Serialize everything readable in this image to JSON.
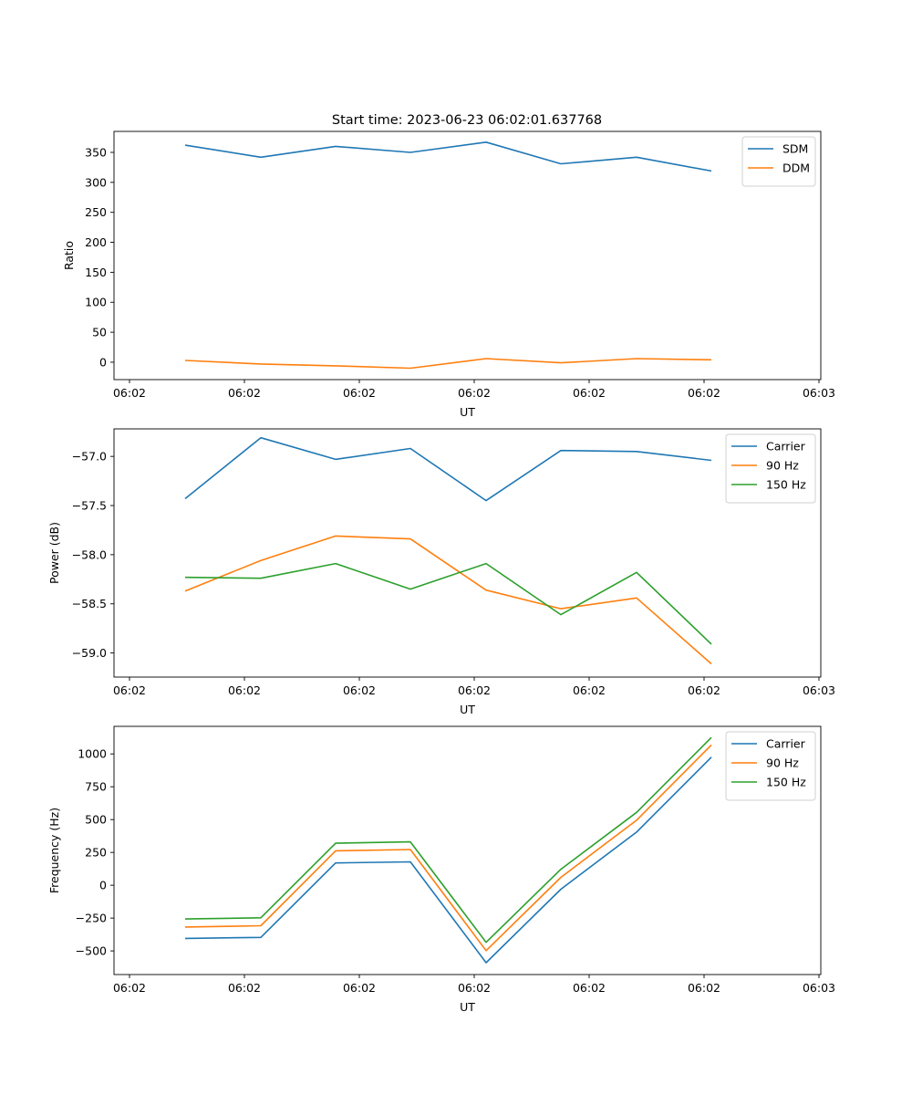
{
  "figure_title": "Start time: 2023-06-23 06:02:01.637768",
  "chart_data": [
    {
      "type": "line",
      "xlabel": "UT",
      "ylabel": "Ratio",
      "x_ticklabels": [
        "06:02",
        "06:02",
        "06:02",
        "06:02",
        "06:02",
        "06:02",
        "06:03"
      ],
      "y_ticks": [
        0,
        50,
        100,
        150,
        200,
        250,
        300,
        350
      ],
      "ylim": [
        -29,
        385
      ],
      "grid": false,
      "legend": "top-right",
      "series": [
        {
          "name": "SDM",
          "color": "#1f77b4",
          "values": [
            362,
            342,
            360,
            350,
            367,
            331,
            342,
            319
          ]
        },
        {
          "name": "DDM",
          "color": "#ff7f0e",
          "values": [
            3,
            -3,
            -6,
            -10,
            6,
            -1,
            6,
            4
          ]
        }
      ]
    },
    {
      "type": "line",
      "xlabel": "UT",
      "ylabel": "Power (dB)",
      "x_ticklabels": [
        "06:02",
        "06:02",
        "06:02",
        "06:02",
        "06:02",
        "06:02",
        "06:03"
      ],
      "y_ticks": [
        -57.0,
        -57.5,
        -58.0,
        -58.5,
        -59.0
      ],
      "ylim": [
        -59.245,
        -56.72
      ],
      "grid": false,
      "legend": "top-right",
      "series": [
        {
          "name": "Carrier",
          "color": "#1f77b4",
          "values": [
            -57.43,
            -56.81,
            -57.03,
            -56.92,
            -57.45,
            -56.94,
            -56.95,
            -57.04
          ]
        },
        {
          "name": "90 Hz",
          "color": "#ff7f0e",
          "values": [
            -58.37,
            -58.06,
            -57.81,
            -57.84,
            -58.36,
            -58.55,
            -58.44,
            -59.11
          ]
        },
        {
          "name": "150 Hz",
          "color": "#2ca02c",
          "values": [
            -58.23,
            -58.24,
            -58.09,
            -58.35,
            -58.09,
            -58.61,
            -58.18,
            -58.91
          ]
        }
      ]
    },
    {
      "type": "line",
      "xlabel": "UT",
      "ylabel": "Frequency (Hz)",
      "x_ticklabels": [
        "06:02",
        "06:02",
        "06:02",
        "06:02",
        "06:02",
        "06:02",
        "06:03"
      ],
      "y_ticks": [
        -500,
        -250,
        0,
        250,
        500,
        750,
        1000
      ],
      "ylim": [
        -680,
        1210
      ],
      "grid": false,
      "legend": "top-right",
      "series": [
        {
          "name": "Carrier",
          "color": "#1f77b4",
          "values": [
            -405,
            -397,
            170,
            178,
            -590,
            -30,
            405,
            975
          ]
        },
        {
          "name": "90 Hz",
          "color": "#ff7f0e",
          "values": [
            -318,
            -308,
            262,
            272,
            -498,
            60,
            495,
            1068
          ]
        },
        {
          "name": "150 Hz",
          "color": "#2ca02c",
          "values": [
            -257,
            -248,
            320,
            330,
            -435,
            122,
            555,
            1125
          ]
        }
      ]
    }
  ]
}
